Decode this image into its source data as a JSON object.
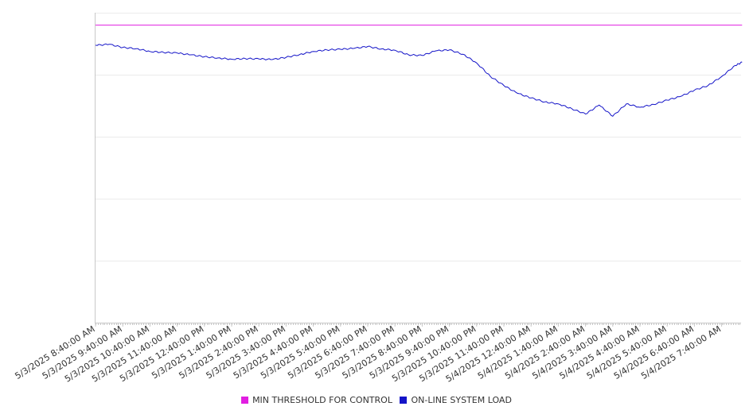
{
  "chart_data": {
    "type": "line",
    "title": "",
    "xlabel": "",
    "ylabel": "",
    "grid": true,
    "legend_position": "bottom",
    "x_tick_labels": [
      "5/3/2025 8:40:00 AM",
      "5/3/2025 9:40:00 AM",
      "5/3/2025 10:40:00 AM",
      "5/3/2025 11:40:00 AM",
      "5/3/2025 12:40:00 PM",
      "5/3/2025 1:40:00 PM",
      "5/3/2025 2:40:00 PM",
      "5/3/2025 3:40:00 PM",
      "5/3/2025 4:40:00 PM",
      "5/3/2025 5:40:00 PM",
      "5/3/2025 6:40:00 PM",
      "5/3/2025 7:40:00 PM",
      "5/3/2025 8:40:00 PM",
      "5/3/2025 9:40:00 PM",
      "5/3/2025 10:40:00 PM",
      "5/3/2025 11:40:00 PM",
      "5/4/2025 12:40:00 AM",
      "5/4/2025 1:40:00 AM",
      "5/4/2025 2:40:00 AM",
      "5/4/2025 3:40:00 AM",
      "5/4/2025 4:40:00 AM",
      "5/4/2025 5:40:00 AM",
      "5/4/2025 6:40:00 AM",
      "5/4/2025 7:40:00 AM"
    ],
    "ylim": [
      0,
      100
    ],
    "series": [
      {
        "name": "MIN THRESHOLD FOR CONTROL",
        "color": "#e11ee1",
        "x": [
          "5/3/2025 8:40:00 AM",
          "5/4/2025 8:25:00 AM"
        ],
        "y": [
          96,
          96
        ]
      },
      {
        "name": "ON-LINE SYSTEM LOAD",
        "color": "#1414c8",
        "x": [
          "5/3/2025 8:40:00 AM",
          "5/3/2025 9:10:00 AM",
          "5/3/2025 9:40:00 AM",
          "5/3/2025 10:10:00 AM",
          "5/3/2025 10:40:00 AM",
          "5/3/2025 11:10:00 AM",
          "5/3/2025 11:40:00 AM",
          "5/3/2025 12:10:00 PM",
          "5/3/2025 12:40:00 PM",
          "5/3/2025 1:10:00 PM",
          "5/3/2025 1:40:00 PM",
          "5/3/2025 2:10:00 PM",
          "5/3/2025 2:40:00 PM",
          "5/3/2025 3:10:00 PM",
          "5/3/2025 3:40:00 PM",
          "5/3/2025 4:10:00 PM",
          "5/3/2025 4:40:00 PM",
          "5/3/2025 5:10:00 PM",
          "5/3/2025 5:40:00 PM",
          "5/3/2025 6:10:00 PM",
          "5/3/2025 6:40:00 PM",
          "5/3/2025 7:10:00 PM",
          "5/3/2025 7:40:00 PM",
          "5/3/2025 8:10:00 PM",
          "5/3/2025 8:40:00 PM",
          "5/3/2025 9:10:00 PM",
          "5/3/2025 9:40:00 PM",
          "5/3/2025 10:10:00 PM",
          "5/3/2025 10:40:00 PM",
          "5/3/2025 11:10:00 PM",
          "5/3/2025 11:40:00 PM",
          "5/4/2025 12:10:00 AM",
          "5/4/2025 12:40:00 AM",
          "5/4/2025 1:10:00 AM",
          "5/4/2025 1:40:00 AM",
          "5/4/2025 2:10:00 AM",
          "5/4/2025 2:40:00 AM",
          "5/4/2025 3:10:00 AM",
          "5/4/2025 3:40:00 AM",
          "5/4/2025 4:10:00 AM",
          "5/4/2025 4:40:00 AM",
          "5/4/2025 5:10:00 AM",
          "5/4/2025 5:40:00 AM",
          "5/4/2025 6:10:00 AM",
          "5/4/2025 6:40:00 AM",
          "5/4/2025 7:10:00 AM",
          "5/4/2025 7:40:00 AM",
          "5/4/2025 8:10:00 AM",
          "5/4/2025 8:25:00 AM"
        ],
        "y": [
          89.5,
          89.8,
          88.8,
          88.4,
          87.5,
          87.2,
          87.0,
          86.4,
          85.8,
          85.4,
          85.0,
          85.2,
          85.1,
          84.9,
          85.6,
          86.5,
          87.5,
          88.0,
          88.2,
          88.5,
          89.1,
          88.3,
          87.9,
          86.4,
          86.2,
          87.7,
          88.0,
          86.6,
          83.8,
          79.5,
          76.5,
          74.0,
          72.5,
          71.2,
          70.6,
          69.0,
          67.3,
          70.2,
          66.6,
          70.6,
          69.5,
          70.4,
          71.8,
          73.0,
          75.0,
          76.5,
          79.4,
          83.0,
          84.0
        ]
      }
    ]
  }
}
